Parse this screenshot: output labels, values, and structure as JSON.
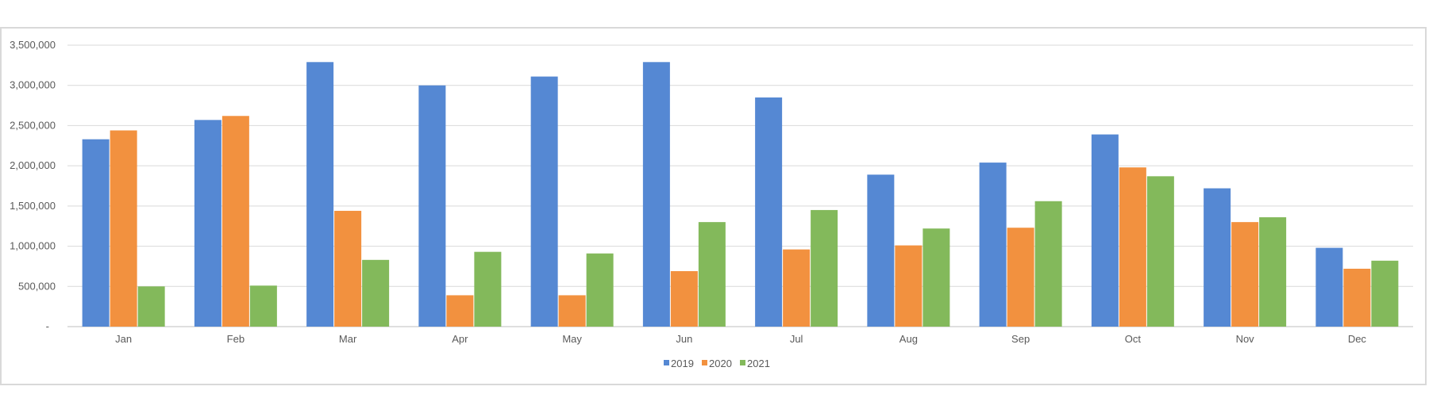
{
  "chart_data": {
    "type": "bar",
    "title": "",
    "xlabel": "",
    "ylabel": "",
    "categories": [
      "Jan",
      "Feb",
      "Mar",
      "Apr",
      "May",
      "Jun",
      "Jul",
      "Aug",
      "Sep",
      "Oct",
      "Nov",
      "Dec"
    ],
    "series": [
      {
        "name": "2019",
        "color": "#5588d3",
        "values": [
          2330000,
          2570000,
          3290000,
          3000000,
          3110000,
          3290000,
          2850000,
          1890000,
          2040000,
          2390000,
          1720000,
          980000
        ]
      },
      {
        "name": "2020",
        "color": "#f2913f",
        "values": [
          2440000,
          2620000,
          1440000,
          390000,
          390000,
          690000,
          960000,
          1010000,
          1230000,
          1980000,
          1300000,
          720000
        ]
      },
      {
        "name": "2021",
        "color": "#83b95b",
        "values": [
          500000,
          510000,
          830000,
          930000,
          910000,
          1300000,
          1450000,
          1220000,
          1560000,
          1870000,
          1360000,
          820000
        ]
      }
    ],
    "ylim": [
      0,
      3500000
    ],
    "yticks": [
      0,
      500000,
      1000000,
      1500000,
      2000000,
      2500000,
      3000000,
      3500000
    ],
    "ytick_labels": [
      "-",
      "500,000",
      "1,000,000",
      "1,500,000",
      "2,000,000",
      "2,500,000",
      "3,000,000",
      "3,500,000"
    ],
    "grid": true,
    "legend_position": "bottom"
  }
}
